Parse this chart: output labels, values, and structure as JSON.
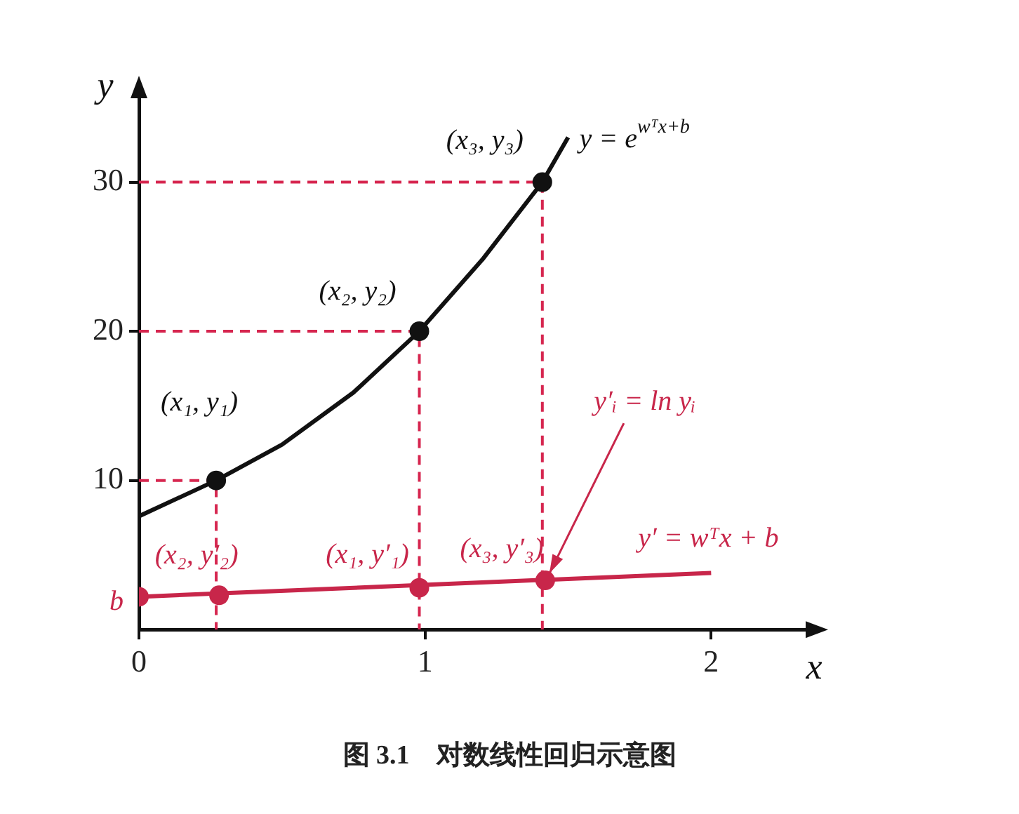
{
  "chart_data": {
    "type": "line",
    "xlabel": "x",
    "ylabel": "y",
    "xlim": [
      0,
      2.35
    ],
    "ylim": [
      0,
      36
    ],
    "xticks": [
      0,
      1,
      2
    ],
    "yticks": [
      10,
      20,
      30
    ],
    "series": [
      {
        "type": "scatter",
        "color": "#111111",
        "marker": "circle",
        "x": [
          0.27,
          0.98,
          1.41
        ],
        "values": [
          10,
          20,
          30
        ]
      },
      {
        "type": "scatter",
        "color": "#c8264a",
        "marker": "circle",
        "x": [
          0,
          0.28,
          0.98,
          1.42
        ],
        "values": [
          2.2,
          2.3,
          2.8,
          3.3
        ]
      },
      {
        "type": "line",
        "color": "#111111",
        "marker": "none",
        "x": [
          0,
          0.27,
          0.5,
          0.75,
          0.98,
          1.2,
          1.41,
          1.5
        ],
        "values": [
          7.6,
          10,
          12.4,
          15.9,
          20,
          24.8,
          30,
          33
        ]
      },
      {
        "type": "line",
        "color": "#c8264a",
        "marker": "none",
        "x": [
          0,
          2
        ],
        "values": [
          2.2,
          3.8
        ]
      },
      {
        "type": "line",
        "color": "#d6264f",
        "marker": "none",
        "line_style": "dashed",
        "x": [
          0,
          0.27,
          0.27
        ],
        "values": [
          10,
          10,
          0
        ]
      },
      {
        "type": "line",
        "color": "#d6264f",
        "marker": "none",
        "line_style": "dashed",
        "x": [
          0,
          0.98,
          0.98
        ],
        "values": [
          20,
          20,
          0
        ]
      },
      {
        "type": "line",
        "color": "#d6264f",
        "marker": "none",
        "line_style": "dashed",
        "x": [
          0,
          1.41,
          1.41
        ],
        "values": [
          30,
          30,
          0
        ]
      }
    ],
    "annotations": [
      {
        "text": "(x₁, y₁)",
        "x": 0.27,
        "y": 10
      },
      {
        "text": "(x₂, y₂)",
        "x": 0.98,
        "y": 20
      },
      {
        "text": "(x₃, y₃)",
        "x": 1.41,
        "y": 30
      },
      {
        "text": "y = e$^{wᵀx+b}$",
        "x": 1.5,
        "y": 33
      },
      {
        "text": "(x₂, y′₂)",
        "x": 0.28,
        "y": 2.3
      },
      {
        "text": "(x₁, y′₁)",
        "x": 0.98,
        "y": 2.8
      },
      {
        "text": "(x₃, y′₃)",
        "x": 1.42,
        "y": 3.3
      },
      {
        "text": "y′ = wᵀx + b",
        "x": 2,
        "y": 3.8
      },
      {
        "text": "y′ᵢ = ln yᵢ",
        "x": 1.42,
        "y": 3.3
      },
      {
        "text": "b",
        "x": 0,
        "y": 2.2
      },
      "图 3.1　对数线性回归示意图"
    ]
  }
}
